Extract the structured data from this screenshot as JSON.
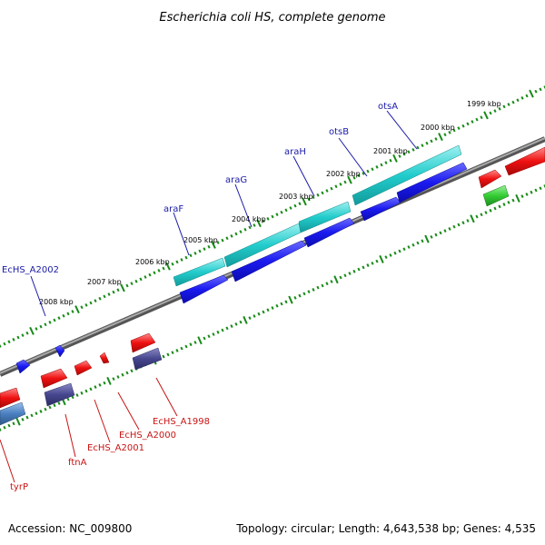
{
  "title": "Escherichia coli HS, complete genome",
  "footer": {
    "accession": "Accession: NC_009800",
    "topology": "Topology: circular; Length: 4,643,538 bp; Genes: 4,535"
  },
  "colors": {
    "background": "#ffffff",
    "backbone": "#8a8a8a",
    "tick": "#178a17",
    "cyan_feature": "#22cccc",
    "blue_feature": "#1a1af0",
    "red_feature": "#ee1111",
    "slate_feature": "#46468e",
    "green_feature": "#33cc33",
    "steel_feature": "#4a7fbf",
    "blue_label": "#1a1aa8",
    "red_label": "#c81414"
  },
  "scale_labels": [
    "1999 kbp",
    "2000 kbp",
    "2001 kbp",
    "2002 kbp",
    "2003 kbp",
    "2004 kbp",
    "2005 kbp",
    "2006 kbp",
    "2007 kbp",
    "2008 kbp"
  ],
  "genes_upper": [
    "otsA",
    "otsB",
    "araH",
    "araG",
    "araF",
    "EcHS_A2002"
  ],
  "genes_lower": [
    "EcHS_A1998",
    "EcHS_A2000",
    "EcHS_A2001",
    "ftnA",
    "tyrP"
  ]
}
